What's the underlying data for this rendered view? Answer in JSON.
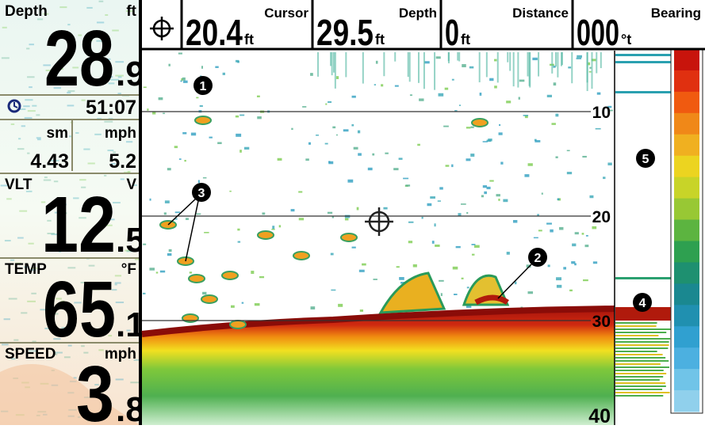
{
  "left_panel": {
    "depth": {
      "label": "Depth",
      "unit": "ft",
      "whole": "28",
      "fraction": ".9"
    },
    "timer": "51:07",
    "distance": {
      "label": "sm",
      "value": "4.43"
    },
    "speed_small": {
      "label": "mph",
      "value": "5.2"
    },
    "voltage": {
      "label": "VLT",
      "unit": "V",
      "whole": "12",
      "fraction": ".5"
    },
    "temp": {
      "label": "TEMP",
      "unit": "°F",
      "whole": "65",
      "fraction": ".1"
    },
    "speed": {
      "label": "SPEED",
      "unit": "mph",
      "whole": "3",
      "fraction": ".8"
    }
  },
  "top_bar": [
    {
      "value": "20.4",
      "unit": "ft",
      "label": "Cursor"
    },
    {
      "value": "29.5",
      "unit": "ft",
      "label": "Depth"
    },
    {
      "value": "0",
      "unit": "ft",
      "label": "Distance"
    },
    {
      "value": "000",
      "unit": "°t",
      "label": "Bearing"
    }
  ],
  "depth_scale": [
    "10",
    "20",
    "30",
    "40"
  ],
  "callouts": [
    "1",
    "2",
    "3",
    "4",
    "5"
  ]
}
